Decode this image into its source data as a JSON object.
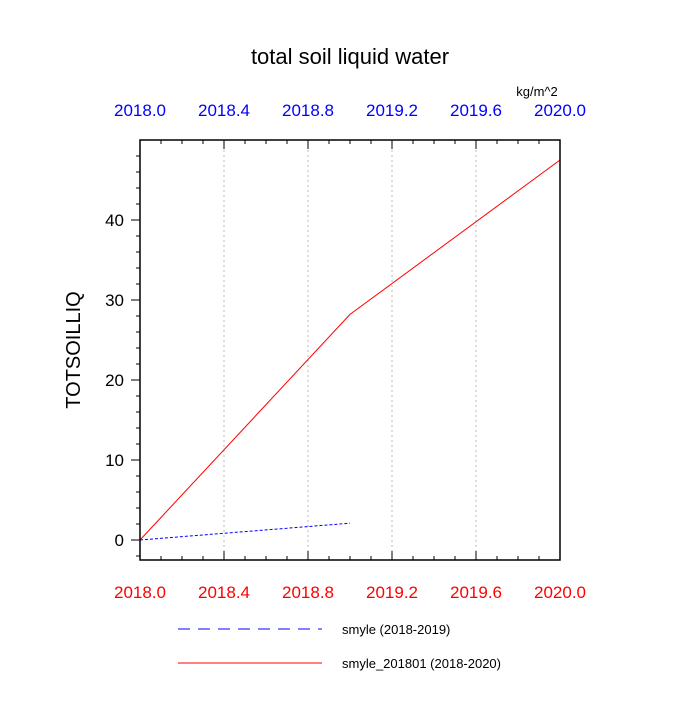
{
  "chart_data": {
    "type": "line",
    "title": "total soil liquid water",
    "units": "kg/m^2",
    "ylabel": "TOTSOILLIQ",
    "xlabel": "",
    "xlim": [
      2018.0,
      2020.0
    ],
    "ylim": [
      -2.5,
      50
    ],
    "x_ticks": [
      2018.0,
      2018.4,
      2018.8,
      2019.2,
      2019.6,
      2020.0
    ],
    "x_tick_labels": [
      "2018.0",
      "2018.4",
      "2018.8",
      "2019.2",
      "2019.6",
      "2020.0"
    ],
    "y_ticks": [
      0,
      10,
      20,
      30,
      40
    ],
    "y_tick_labels": [
      "0",
      "10",
      "20",
      "30",
      "40"
    ],
    "x_grid": true,
    "y_grid": false,
    "legend_placement": "bottom",
    "series": [
      {
        "name": "smyle (2018-2019)",
        "color": "#0000ff",
        "dash": "dashed",
        "x": [
          2018.0,
          2019.0
        ],
        "y": [
          0.0,
          2.1
        ]
      },
      {
        "name": "smyle_201801 (2018-2020)",
        "color": "#ff0000",
        "dash": "solid",
        "x": [
          2018.0,
          2019.0,
          2020.0
        ],
        "y": [
          0.0,
          28.2,
          47.5
        ]
      }
    ],
    "colors": {
      "top_axis_labels": "#0000ff",
      "bottom_axis_labels": "#ff0000",
      "axes": "#000000",
      "grid": "#bbbbbb"
    }
  }
}
